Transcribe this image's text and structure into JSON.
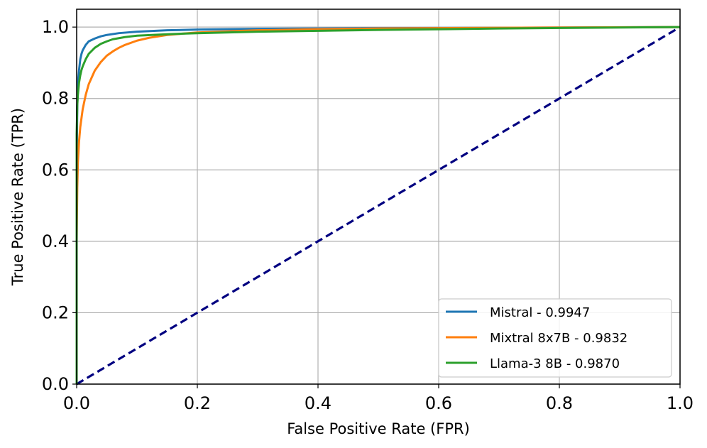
{
  "chart_data": {
    "type": "line",
    "title": "",
    "xlabel": "False Positive Rate (FPR)",
    "ylabel": "True Positive Rate (TPR)",
    "xlim": [
      0.0,
      1.0
    ],
    "ylim": [
      0.0,
      1.05
    ],
    "x_ticks": [
      "0.0",
      "0.2",
      "0.4",
      "0.6",
      "0.8",
      "1.0"
    ],
    "y_ticks": [
      "0.0",
      "0.2",
      "0.4",
      "0.6",
      "0.8",
      "1.0"
    ],
    "grid": true,
    "legend_position": "lower-right",
    "series": [
      {
        "name": "Mistral - 0.9947",
        "color": "#1f77b4",
        "x": [
          0.0,
          0.0,
          0.001,
          0.002,
          0.004,
          0.006,
          0.008,
          0.01,
          0.015,
          0.02,
          0.03,
          0.04,
          0.05,
          0.07,
          0.1,
          0.15,
          0.2,
          0.3,
          0.5,
          0.7,
          1.0
        ],
        "y": [
          0.0,
          0.6,
          0.78,
          0.84,
          0.88,
          0.91,
          0.925,
          0.935,
          0.95,
          0.96,
          0.968,
          0.974,
          0.978,
          0.983,
          0.987,
          0.991,
          0.993,
          0.995,
          0.997,
          0.998,
          1.0
        ]
      },
      {
        "name": "Mixtral 8x7B - 0.9832",
        "color": "#ff7f0e",
        "x": [
          0.0,
          0.0,
          0.001,
          0.002,
          0.004,
          0.006,
          0.008,
          0.01,
          0.015,
          0.02,
          0.03,
          0.04,
          0.05,
          0.06,
          0.07,
          0.08,
          0.1,
          0.12,
          0.15,
          0.2,
          0.3,
          0.4,
          0.5,
          0.7,
          1.0
        ],
        "y": [
          0.0,
          0.4,
          0.55,
          0.62,
          0.68,
          0.72,
          0.745,
          0.77,
          0.81,
          0.84,
          0.878,
          0.902,
          0.92,
          0.932,
          0.942,
          0.95,
          0.962,
          0.97,
          0.978,
          0.985,
          0.991,
          0.994,
          0.996,
          0.998,
          1.0
        ]
      },
      {
        "name": "Llama-3 8B - 0.9870",
        "color": "#2ca02c",
        "x": [
          0.0,
          0.0,
          0.001,
          0.002,
          0.004,
          0.006,
          0.008,
          0.01,
          0.015,
          0.02,
          0.03,
          0.04,
          0.05,
          0.06,
          0.08,
          0.1,
          0.15,
          0.2,
          0.3,
          0.5,
          0.7,
          1.0
        ],
        "y": [
          0.0,
          0.7,
          0.78,
          0.81,
          0.845,
          0.865,
          0.88,
          0.89,
          0.91,
          0.925,
          0.942,
          0.953,
          0.96,
          0.966,
          0.972,
          0.976,
          0.98,
          0.983,
          0.987,
          0.992,
          0.996,
          1.0
        ]
      }
    ],
    "reference_line": {
      "color": "#000080",
      "style": "dashed",
      "x": [
        0.0,
        1.0
      ],
      "y": [
        0.0,
        1.0
      ]
    }
  }
}
